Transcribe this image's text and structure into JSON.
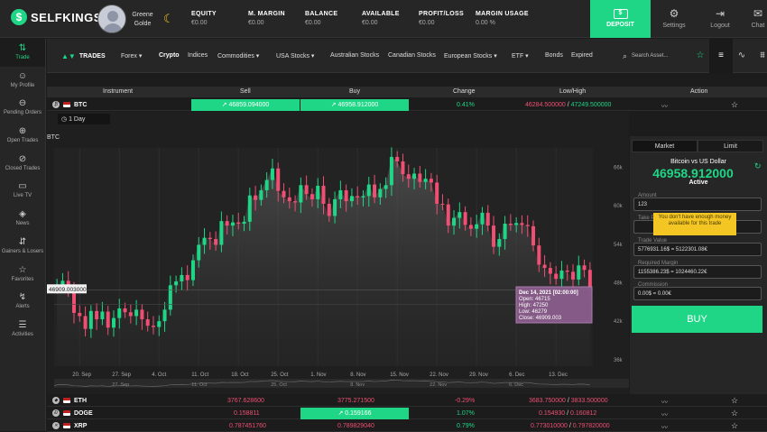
{
  "brand": {
    "name": "SELFKINGS",
    "logo_letter": "$"
  },
  "user": {
    "first": "Greene",
    "last": "Golde"
  },
  "stats": [
    {
      "label": "EQUITY",
      "value": "€0.00"
    },
    {
      "label": "M. MARGIN",
      "value": "€0.00"
    },
    {
      "label": "BALANCE",
      "value": "€0.00"
    },
    {
      "label": "AVAILABLE",
      "value": "€0.00"
    },
    {
      "label": "PROFIT/LOSS",
      "value": "€0.00"
    },
    {
      "label": "MARGIN USAGE",
      "value": "0.00 %"
    }
  ],
  "deposit_label": "DEPOSIT",
  "top_actions": [
    {
      "label": "Settings",
      "icon": "gear-icon"
    },
    {
      "label": "Logout",
      "icon": "logout-icon"
    },
    {
      "label": "Chat",
      "icon": "chat-icon"
    }
  ],
  "sidebar": [
    {
      "label": "Trade",
      "icon": "trade-icon"
    },
    {
      "label": "My Profile",
      "icon": "profile-icon"
    },
    {
      "label": "Pending Orders",
      "icon": "pending-icon"
    },
    {
      "label": "Open Trades",
      "icon": "open-trades-icon"
    },
    {
      "label": "Closed Trades",
      "icon": "closed-trades-icon"
    },
    {
      "label": "Live TV",
      "icon": "tv-icon"
    },
    {
      "label": "News",
      "icon": "news-icon"
    },
    {
      "label": "Gainers & Losers",
      "icon": "gainers-icon"
    },
    {
      "label": "Favorites",
      "icon": "star-icon"
    },
    {
      "label": "Alerts",
      "icon": "alerts-icon"
    },
    {
      "label": "Activities",
      "icon": "activities-icon"
    }
  ],
  "nav": {
    "trades_label": "TRADES",
    "items": [
      "Forex ▾",
      "Crypto",
      "Indices",
      "Commodities ▾",
      "USA Stocks ▾",
      "Australian Stocks",
      "Canadian Stocks",
      "European Stocks ▾",
      "ETF ▾",
      "Bonds",
      "Expired"
    ],
    "search_placeholder": "Search Asset..."
  },
  "columns": [
    "Instrument",
    "Sell",
    "Buy",
    "Change",
    "Low/High",
    "Action"
  ],
  "rows": [
    {
      "symbol": "BTC",
      "sell": "↗ 46859.094000",
      "buy": "↗ 46958.912000",
      "change": "0.41%",
      "low": "46284.500000",
      "high": "47249.500000"
    },
    {
      "symbol": "ETH",
      "sell": "3767.628600",
      "buy": "3775.271500",
      "change": "-0.29%",
      "low": "3683.750000",
      "high": "3833.500000"
    },
    {
      "symbol": "DOGE",
      "sell": "0.158811",
      "buy": "↗ 0.159166",
      "change": "1.07%",
      "low": "0.154930",
      "high": "0.160812"
    },
    {
      "symbol": "XRP",
      "sell": "0.787451760",
      "buy": "0.789829040",
      "change": "0.79%",
      "low": "0.773010000",
      "high": "0.797820000"
    }
  ],
  "chart": {
    "interval": "1 Day",
    "symbol": "BTC",
    "crosshair_label": "46909.003000"
  },
  "chart_data": {
    "type": "candlestick",
    "x_ticks": [
      "20. Sep",
      "27. Sep",
      "4. Oct",
      "11. Oct",
      "18. Oct",
      "25. Oct",
      "1. Nov",
      "8. Nov",
      "15. Nov",
      "22. Nov",
      "29. Nov",
      "6. Dec",
      "13. Dec"
    ],
    "nav_ticks": [
      "27. Sep",
      "11. Oct",
      "25. Oct",
      "8. Nov",
      "22. Nov",
      "6. Dec"
    ],
    "y_ticks": [
      "66k",
      "60k",
      "54k",
      "48k",
      "42k",
      "36k"
    ],
    "y_values": [
      66000,
      60000,
      54000,
      48000,
      42000,
      36000
    ],
    "ylim": [
      35000,
      69000
    ],
    "start": "2021-09-16",
    "closes": [
      47700,
      48300,
      47200,
      43300,
      42800,
      40800,
      43600,
      42300,
      43500,
      41000,
      42500,
      44000,
      43400,
      42800,
      43800,
      42300,
      41300,
      41100,
      42000,
      43800,
      47600,
      48200,
      49200,
      48400,
      51500,
      53900,
      55000,
      54800,
      53900,
      57600,
      56900,
      57400,
      57200,
      57500,
      61600,
      60900,
      62400,
      64000,
      65800,
      62300,
      61300,
      60700,
      60500,
      63200,
      61800,
      61000,
      63100,
      60300,
      58400,
      61000,
      62400,
      60700,
      61500,
      61300,
      61500,
      63300,
      61300,
      62600,
      63200,
      67600,
      66900,
      64900,
      64200,
      65000,
      63700,
      64200,
      63600,
      60300,
      60200,
      56900,
      58100,
      59000,
      57000,
      56400,
      57100,
      58900,
      56900,
      53600,
      54800,
      57200,
      57000,
      57300,
      57000,
      56800,
      53800,
      50800,
      50300,
      49400,
      48600,
      49900,
      49700,
      48500,
      50700,
      50000,
      46900
    ],
    "tooltip": {
      "date": "Dec 14, 2021 [02:00:00]",
      "open": "46715",
      "high": "47250",
      "low": "46279",
      "close": "46909.003"
    }
  },
  "panel": {
    "tab_market": "Market",
    "tab_limit": "Limit",
    "title": "Bitcoin vs US Dollar",
    "price": "46958.912000",
    "status": "Active",
    "amount_label": "Amount",
    "amount": "123",
    "take_profit_label": "Take Pr",
    "tooltip": "You don't have enough money available for this trade",
    "trade_value_label": "Trade Value",
    "trade_value": "5776931.16$ = 5122301.08€",
    "req_margin_label": "Required Margin",
    "req_margin": "1155386.23$ = 1024460.22€",
    "commission_label": "Commission",
    "commission": "0.00$ = 0.00€",
    "buy_label": "BUY"
  }
}
